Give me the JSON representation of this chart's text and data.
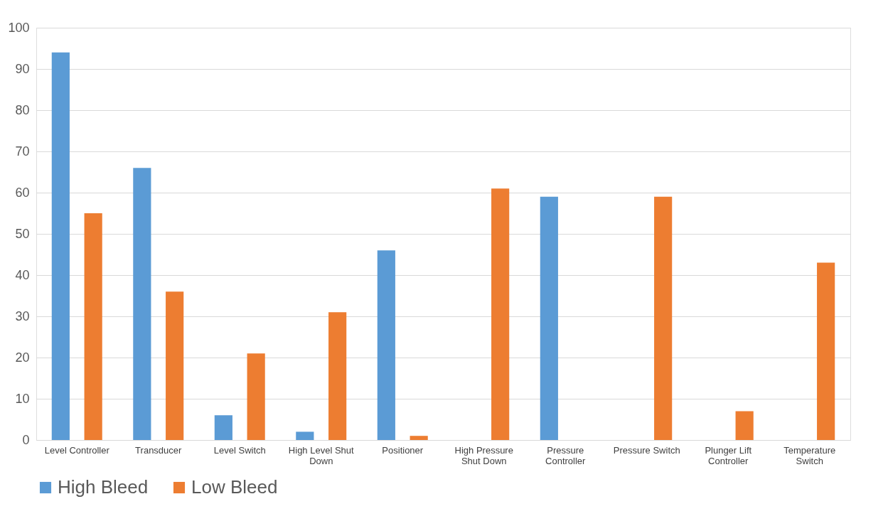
{
  "chart_data": {
    "type": "bar",
    "categories": [
      "Level Controller",
      "Transducer",
      "Level Switch",
      "High Level Shut Down",
      "Positioner",
      "High Pressure Shut Down",
      "Pressure Controller",
      "Pressure Switch",
      "Plunger Lift Controller",
      "Temperature Switch"
    ],
    "series": [
      {
        "name": "High Bleed",
        "color": "#5b9bd5",
        "values": [
          94,
          66,
          6,
          2,
          46,
          null,
          59,
          null,
          null,
          null
        ]
      },
      {
        "name": "Low Bleed",
        "color": "#ed7d31",
        "values": [
          55,
          36,
          21,
          31,
          1,
          61,
          null,
          59,
          7,
          43
        ]
      }
    ],
    "ylim": [
      0,
      100
    ],
    "yticks": [
      0,
      10,
      20,
      30,
      40,
      50,
      60,
      70,
      80,
      90,
      100
    ],
    "grid": "y",
    "legend": "bottom"
  }
}
